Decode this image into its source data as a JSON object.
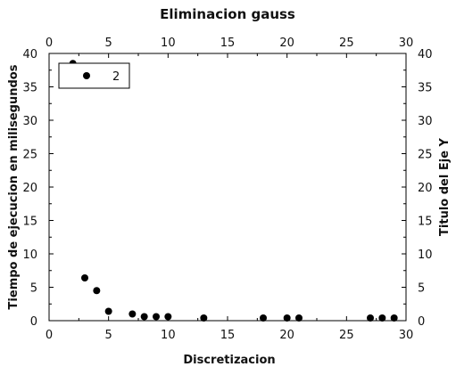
{
  "chart_data": {
    "type": "scatter",
    "title": "Eliminacion gauss",
    "xlabel": "Discretizacion",
    "ylabel": "Tiempo de ejecucion en milisegundos",
    "y2label": "Titulo del Eje Y",
    "xlim": [
      0,
      30
    ],
    "ylim": [
      0,
      40
    ],
    "x_ticks": [
      "0",
      "5",
      "10",
      "15",
      "20",
      "25",
      "30"
    ],
    "y_ticks": [
      "0",
      "5",
      "10",
      "15",
      "20",
      "25",
      "30",
      "35",
      "40"
    ],
    "grid": false,
    "legend_position": "top-left",
    "series": [
      {
        "name": "2",
        "color": "#000000",
        "marker": "circle",
        "x": [
          2,
          3,
          4,
          5,
          7,
          8,
          9,
          10,
          13,
          18,
          20,
          21,
          27,
          28,
          29
        ],
        "y": [
          38.5,
          6.4,
          4.5,
          1.4,
          1.0,
          0.6,
          0.6,
          0.6,
          0.4,
          0.4,
          0.4,
          0.4,
          0.4,
          0.4,
          0.4
        ]
      }
    ]
  }
}
